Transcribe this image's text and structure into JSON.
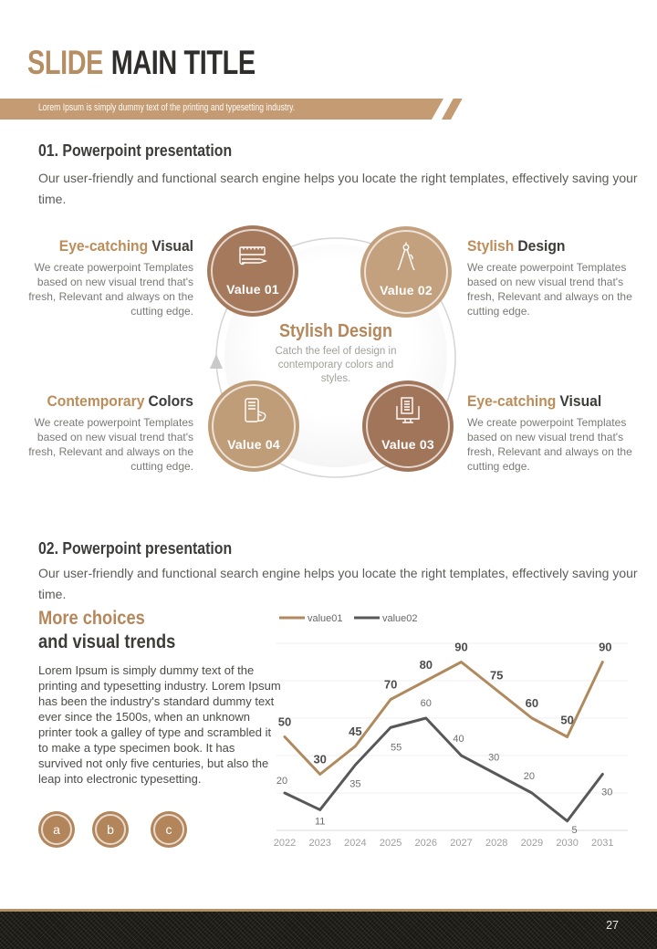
{
  "header": {
    "title_accent": "SLIDE",
    "title_main": "MAIN TITLE",
    "banner": "Lorem Ipsum is simply dummy text of the printing and typesetting industry."
  },
  "section01": {
    "heading": "01. Powerpoint presentation",
    "body": "Our user-friendly and functional search engine helps you locate the right templates, effectively saving your time."
  },
  "diagram": {
    "center": {
      "title": "Stylish Design",
      "body": "Catch the feel of design in contemporary colors and styles."
    },
    "values": [
      {
        "label": "Value 01",
        "icon": "sketch-icon"
      },
      {
        "label": "Value 02",
        "icon": "compass-icon"
      },
      {
        "label": "Value 03",
        "icon": "monitor-document-icon"
      },
      {
        "label": "Value 04",
        "icon": "phone-hand-icon"
      }
    ],
    "blocks": [
      {
        "heading_accent": "Eye-catching",
        "heading_rest": "Visual",
        "body": "We create powerpoint Templates based on new visual trend that's fresh, Relevant and always on the cutting edge."
      },
      {
        "heading_accent": "Stylish",
        "heading_rest": "Design",
        "body": "We create powerpoint Templates based on new visual trend that's fresh, Relevant and always on the cutting edge."
      },
      {
        "heading_accent": "Contemporary",
        "heading_rest": "Colors",
        "body": "We create powerpoint Templates based on new visual trend that's fresh, Relevant and always on the cutting edge."
      },
      {
        "heading_accent": "Eye-catching",
        "heading_rest": "Visual",
        "body": "We create powerpoint Templates based on new visual trend that's fresh, Relevant and always on the cutting edge."
      }
    ]
  },
  "section02": {
    "heading": "02. Powerpoint presentation",
    "body": "Our user-friendly and functional search engine helps you locate the right templates, effectively saving your time.",
    "subtitle_accent": "More choices",
    "subtitle_rest": "and visual trends",
    "paragraph": "Lorem Ipsum is simply dummy text of the printing and typesetting industry. Lorem Ipsum has been the industry's standard dummy text ever since the 1500s, when an unknown printer took a galley of type and scrambled it to make a type specimen book. It has survived not only five centuries, but also the leap into electronic typesetting.",
    "bullets": [
      "a",
      "b",
      "c"
    ]
  },
  "chart_data": {
    "type": "line",
    "x": [
      "2022",
      "2023",
      "2024",
      "2025",
      "2026",
      "2027",
      "2028",
      "2029",
      "2030",
      "2031"
    ],
    "series": [
      {
        "name": "value01",
        "color": "#b08a5e",
        "values": [
          50,
          30,
          45,
          70,
          80,
          90,
          75,
          60,
          50,
          90
        ]
      },
      {
        "name": "value02",
        "color": "#58585a",
        "values": [
          20,
          11,
          35,
          55,
          60,
          40,
          30,
          20,
          5,
          30
        ]
      }
    ],
    "ylim": [
      0,
      100
    ],
    "grid": true,
    "legend_position": "top-left",
    "title": "",
    "xlabel": "",
    "ylabel": ""
  },
  "footer": {
    "page_number": "27"
  },
  "colors": {
    "accent_tan": "#bc8d5a",
    "banner_tan": "#c49b73",
    "circle_dark": "#a5795c",
    "circle_light": "#c3a17e",
    "footer_gold": "#b29065",
    "footer_dark": "#1a1813"
  }
}
